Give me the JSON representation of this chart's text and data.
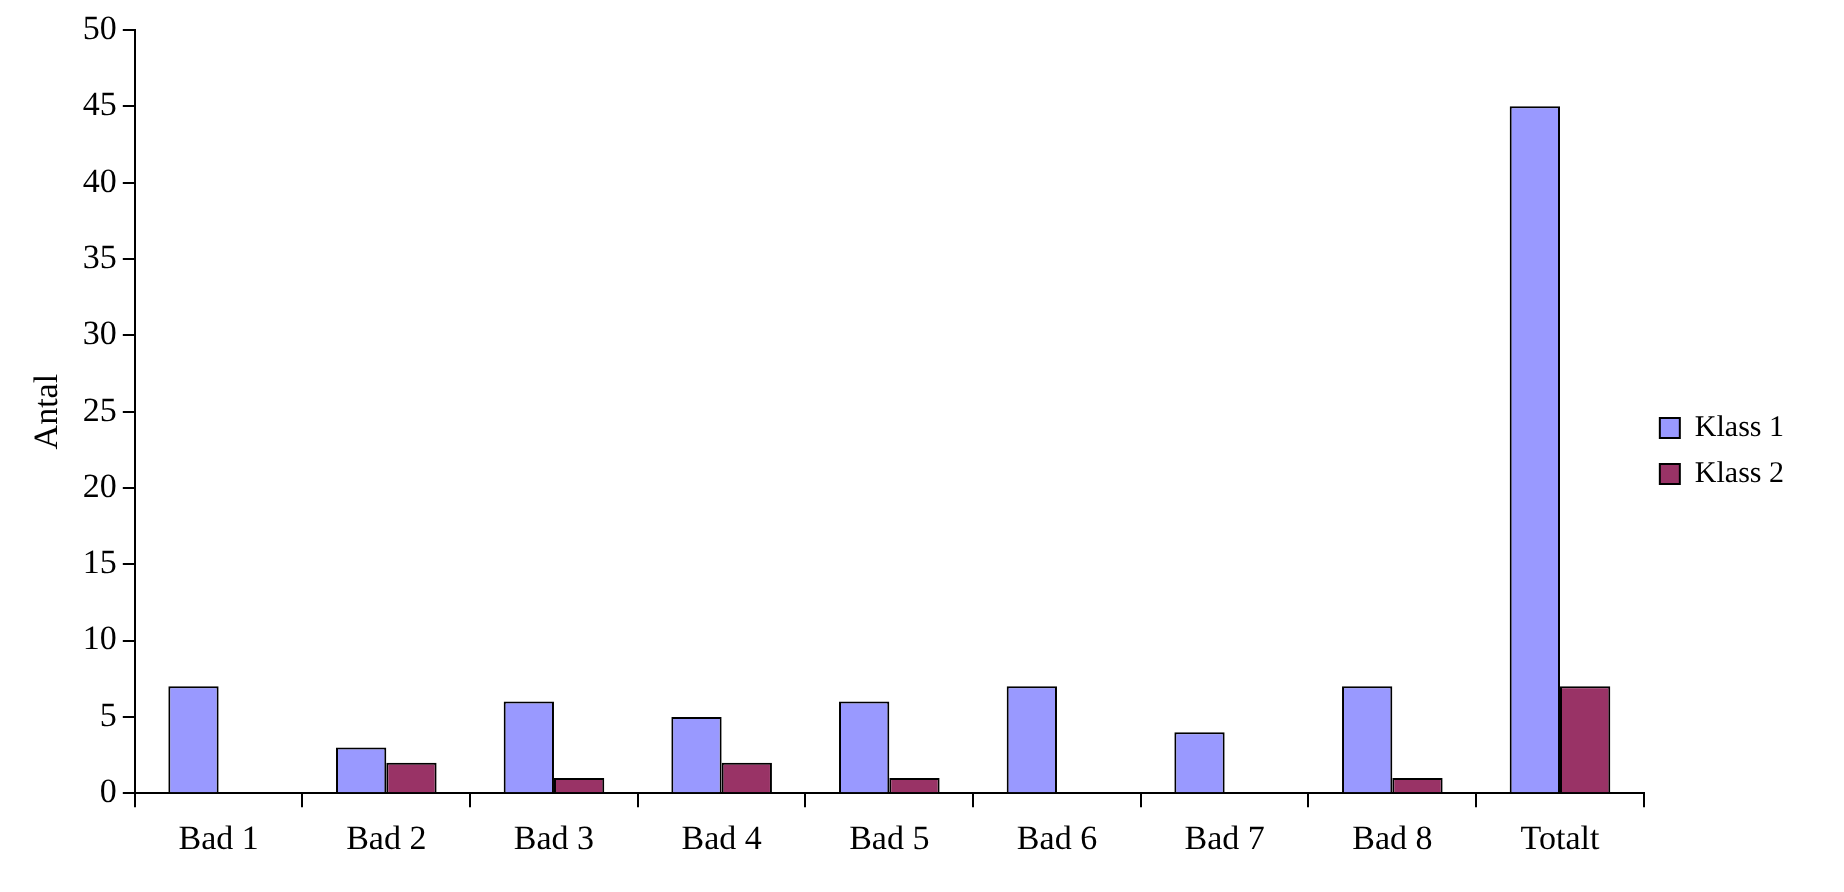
{
  "chart_data": {
    "type": "bar",
    "ylabel": "Antal",
    "categories": [
      "Bad 1",
      "Bad 2",
      "Bad 3",
      "Bad 4",
      "Bad 5",
      "Bad 6",
      "Bad 7",
      "Bad 8",
      "Totalt"
    ],
    "series": [
      {
        "name": "Klass 1",
        "color": "#9999ff",
        "values": [
          7,
          3,
          6,
          5,
          6,
          7,
          4,
          7,
          45
        ]
      },
      {
        "name": "Klass 2",
        "color": "#993366",
        "values": [
          0,
          2,
          1,
          2,
          1,
          0,
          0,
          1,
          7
        ]
      }
    ],
    "ylim": [
      0,
      50
    ],
    "yticks": [
      0,
      5,
      10,
      15,
      20,
      25,
      30,
      35,
      40,
      45,
      50
    ],
    "grid": false,
    "legend": "right"
  }
}
